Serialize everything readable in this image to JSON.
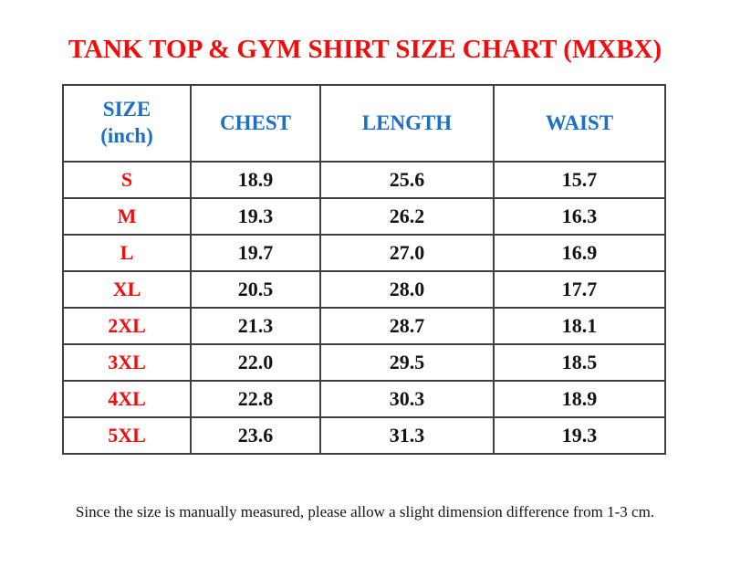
{
  "title": "TANK TOP & GYM SHIRT SIZE CHART (MXBX)",
  "footnote": "Since the size is manually measured, please allow a slight dimension difference from 1-3 cm.",
  "colors": {
    "title_red": "#f40b0b",
    "header_blue": "#1b6fc4",
    "body_text": "#141414",
    "border_gray": "#3f3f3f"
  },
  "chart_data": {
    "type": "table",
    "title": "TANK TOP & GYM SHIRT SIZE CHART (MXBX)",
    "unit": "inch",
    "columns": [
      "SIZE\n(inch)",
      "CHEST",
      "LENGTH",
      "WAIST"
    ],
    "rows": [
      [
        "S",
        "18.9",
        "25.6",
        "15.7"
      ],
      [
        "M",
        "19.3",
        "26.2",
        "16.3"
      ],
      [
        "L",
        "19.7",
        "27.0",
        "16.9"
      ],
      [
        "XL",
        "20.5",
        "28.0",
        "17.7"
      ],
      [
        "2XL",
        "21.3",
        "28.7",
        "18.1"
      ],
      [
        "3XL",
        "22.0",
        "29.5",
        "18.5"
      ],
      [
        "4XL",
        "22.8",
        "30.3",
        "18.9"
      ],
      [
        "5XL",
        "23.6",
        "31.3",
        "19.3"
      ]
    ],
    "footnote": "Since the size is manually measured, please allow a slight dimension difference from 1-3 cm."
  }
}
